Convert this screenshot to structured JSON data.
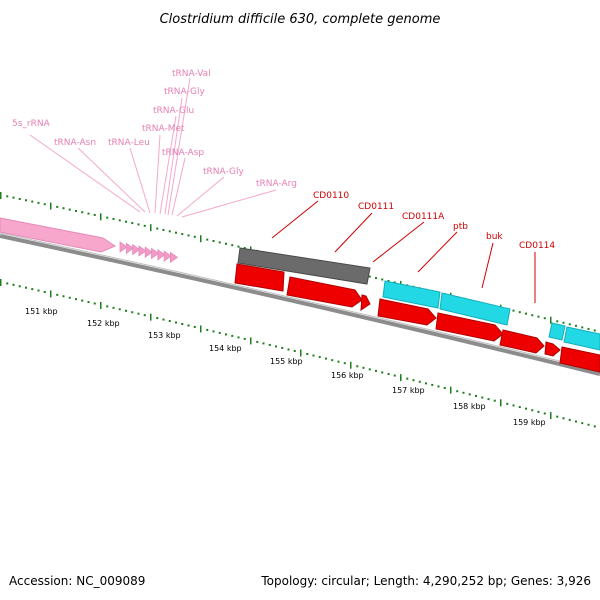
{
  "title": "Clostridium difficile 630, complete genome",
  "footer": {
    "accession": "Accession: NC_009089",
    "summary": "Topology: circular; Length: 4,290,252 bp; Genes: 3,926"
  },
  "colors": {
    "rrna": "#f7a6cc",
    "trna": "#f29bc8",
    "gene_gray": "#6b6b6b",
    "gene_cyan": "#22d8e4",
    "cds_red": "#ee0000",
    "backbone": "#8c8c8c",
    "tick_green": "#1e7d1e",
    "pink_label": "#e87fb3",
    "red_label": "#d00000"
  },
  "scale_labels": [
    "151 kbp",
    "152 kbp",
    "153 kbp",
    "154 kbp",
    "155 kbp",
    "156 kbp",
    "157 kbp",
    "158 kbp",
    "159 kbp"
  ],
  "rna_labels": [
    "tRNA-Val",
    "tRNA-Gly",
    "tRNA-Glu",
    "tRNA-Met",
    "tRNA-Asp",
    "tRNA-Gly",
    "tRNA-Arg",
    "tRNA-Leu",
    "tRNA-Asn",
    "5s_rRNA"
  ],
  "gene_labels": [
    "CD0110",
    "CD0111",
    "CD0111A",
    "ptb",
    "buk",
    "CD0114"
  ]
}
